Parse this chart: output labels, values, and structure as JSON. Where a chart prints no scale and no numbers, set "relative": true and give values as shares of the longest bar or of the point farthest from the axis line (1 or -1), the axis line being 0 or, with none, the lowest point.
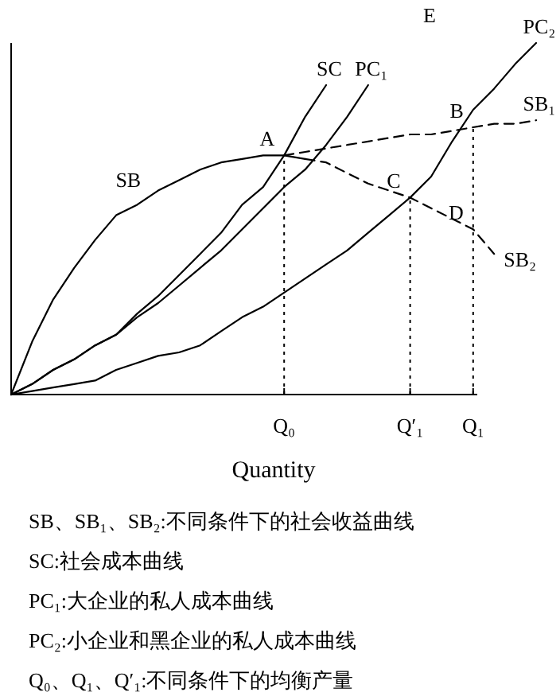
{
  "chart_data": {
    "type": "line",
    "relative": true,
    "xlabel": "Quantity",
    "categories": [
      null,
      null,
      null,
      null,
      null,
      null,
      null,
      null,
      null,
      null,
      null,
      null,
      null,
      "Q₀",
      null,
      null,
      null,
      null,
      null,
      "Q′₁",
      null,
      null,
      "Q₁",
      null,
      null,
      null
    ],
    "series": [
      {
        "name": "SB",
        "color": "#000000",
        "line_style": "solid",
        "values": [
          0,
          0.15,
          0.27,
          0.36,
          0.44,
          0.51,
          0.54,
          0.58,
          0.61,
          0.64,
          0.66,
          0.67,
          0.68,
          0.68,
          0.67,
          null,
          null,
          null,
          null,
          null,
          null,
          null,
          null,
          null,
          null,
          null
        ]
      },
      {
        "name": "SC",
        "color": "#000000",
        "line_style": "solid",
        "values": [
          0,
          0.03,
          0.07,
          0.1,
          0.14,
          0.17,
          0.23,
          0.28,
          0.34,
          0.4,
          0.46,
          0.54,
          0.59,
          0.68,
          0.79,
          0.88,
          null,
          null,
          null,
          null,
          null,
          null,
          null,
          null,
          null,
          null
        ]
      },
      {
        "name": "PC₁",
        "color": "#000000",
        "line_style": "solid",
        "values": [
          0,
          0.03,
          0.07,
          0.1,
          0.14,
          0.17,
          0.22,
          0.26,
          0.31,
          0.36,
          0.41,
          0.47,
          0.53,
          0.59,
          0.64,
          0.71,
          0.79,
          0.88,
          null,
          null,
          null,
          null,
          null,
          null,
          null,
          null
        ]
      },
      {
        "name": "PC₂",
        "color": "#000000",
        "line_style": "solid",
        "values": [
          0,
          0.01,
          0.02,
          0.03,
          0.04,
          0.07,
          0.09,
          0.11,
          0.12,
          0.14,
          0.18,
          0.22,
          0.25,
          0.29,
          0.33,
          0.37,
          0.41,
          0.46,
          0.51,
          0.56,
          0.62,
          0.72,
          0.81,
          0.87,
          0.94,
          1
        ]
      },
      {
        "name": "SB₁",
        "color": "#000000",
        "line_style": "dashed",
        "values": [
          null,
          null,
          null,
          null,
          null,
          null,
          null,
          null,
          null,
          null,
          null,
          null,
          null,
          0.68,
          0.69,
          0.7,
          0.71,
          0.72,
          0.73,
          0.74,
          0.74,
          0.75,
          0.76,
          0.77,
          0.77,
          0.78
        ]
      },
      {
        "name": "SB₂",
        "color": "#000000",
        "line_style": "dashed",
        "values": [
          null,
          null,
          null,
          null,
          null,
          null,
          null,
          null,
          null,
          null,
          null,
          null,
          null,
          null,
          0.67,
          0.66,
          0.63,
          0.6,
          0.58,
          0.56,
          0.53,
          0.5,
          0.47,
          0.4,
          null,
          null
        ]
      }
    ],
    "ref_lines": [
      {
        "axis": "x",
        "value": "Q₀",
        "line_style": "dotted",
        "color": "#000000"
      },
      {
        "axis": "x",
        "value": "Q′₁",
        "line_style": "dotted",
        "color": "#000000"
      },
      {
        "axis": "x",
        "value": "Q₁",
        "line_style": "dotted",
        "color": "#000000"
      }
    ],
    "annotations": [
      {
        "text": "A",
        "x": "Q₀",
        "y": 0.68
      },
      {
        "text": "B",
        "x": "Q₁",
        "y": 0.76
      },
      {
        "text": "C",
        "x": "Q′₁",
        "y": 0.56
      },
      {
        "text": "D",
        "x": "Q₁",
        "y": 0.47
      },
      "E",
      "SB、SB₁、SB₂:不同条件下的社会收益曲线",
      "SC:社会成本曲线",
      "PC₁:大企业的私人成本曲线",
      "PC₂:小企业和黑企业的私人成本曲线",
      "Q₀、Q₁、Q′₁:不同条件下的均衡产量"
    ]
  }
}
